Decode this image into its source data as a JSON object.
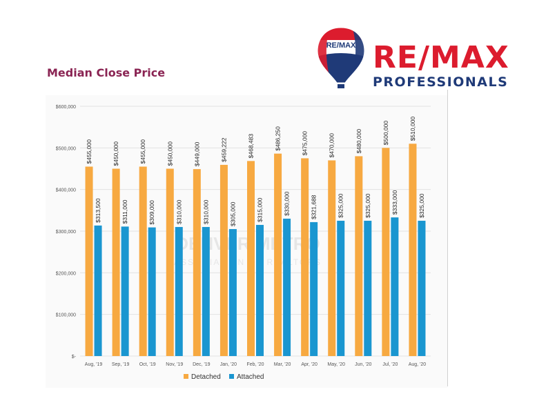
{
  "page_title": "Median Close Price",
  "brand": {
    "badge": "RE/MAX",
    "name": "RE/MAX",
    "tagline": "PROFESSIONALS",
    "colors": {
      "red": "#dc1c2e",
      "blue": "#1f3a78"
    }
  },
  "watermark": {
    "line1": "DENVER METRO",
    "line2": "ASSOCIATION OF REALTORS"
  },
  "chart_data": {
    "type": "bar",
    "title": "Median Close Price",
    "categories": [
      "Aug, '19",
      "Sep, '19",
      "Oct, '19",
      "Nov, '19",
      "Dec, '19",
      "Jan, '20",
      "Feb, '20",
      "Mar, '20",
      "Apr, '20",
      "May, '20",
      "Jun, '20",
      "Jul, '20",
      "Aug, '20"
    ],
    "series": [
      {
        "name": "Detached",
        "color": "#f7a941",
        "values": [
          455000,
          450000,
          455000,
          450000,
          449000,
          459222,
          468483,
          486250,
          475000,
          470000,
          480000,
          500000,
          510000
        ],
        "labels": [
          "$455,000",
          "$450,000",
          "$455,000",
          "$450,000",
          "$449,000",
          "$459,222",
          "$468,483",
          "$486,250",
          "$475,000",
          "$470,000",
          "$480,000",
          "$500,000",
          "$510,000"
        ]
      },
      {
        "name": "Attached",
        "color": "#1a96d0",
        "values": [
          313500,
          311000,
          309000,
          310000,
          310000,
          305000,
          315000,
          330000,
          321688,
          325000,
          325000,
          333000,
          325000
        ],
        "labels": [
          "$313,500",
          "$311,000",
          "$309,000",
          "$310,000",
          "$310,000",
          "$305,000",
          "$315,000",
          "$330,000",
          "$321,688",
          "$325,000",
          "$325,000",
          "$333,000",
          "$325,000"
        ]
      }
    ],
    "ylim": [
      0,
      600000
    ],
    "yticks": [
      0,
      100000,
      200000,
      300000,
      400000,
      500000,
      600000
    ],
    "ytick_labels": [
      "$-",
      "$100,000",
      "$200,000",
      "$300,000",
      "$400,000",
      "$500,000",
      "$600,000"
    ],
    "grid": true,
    "legend": "bottom-center"
  }
}
